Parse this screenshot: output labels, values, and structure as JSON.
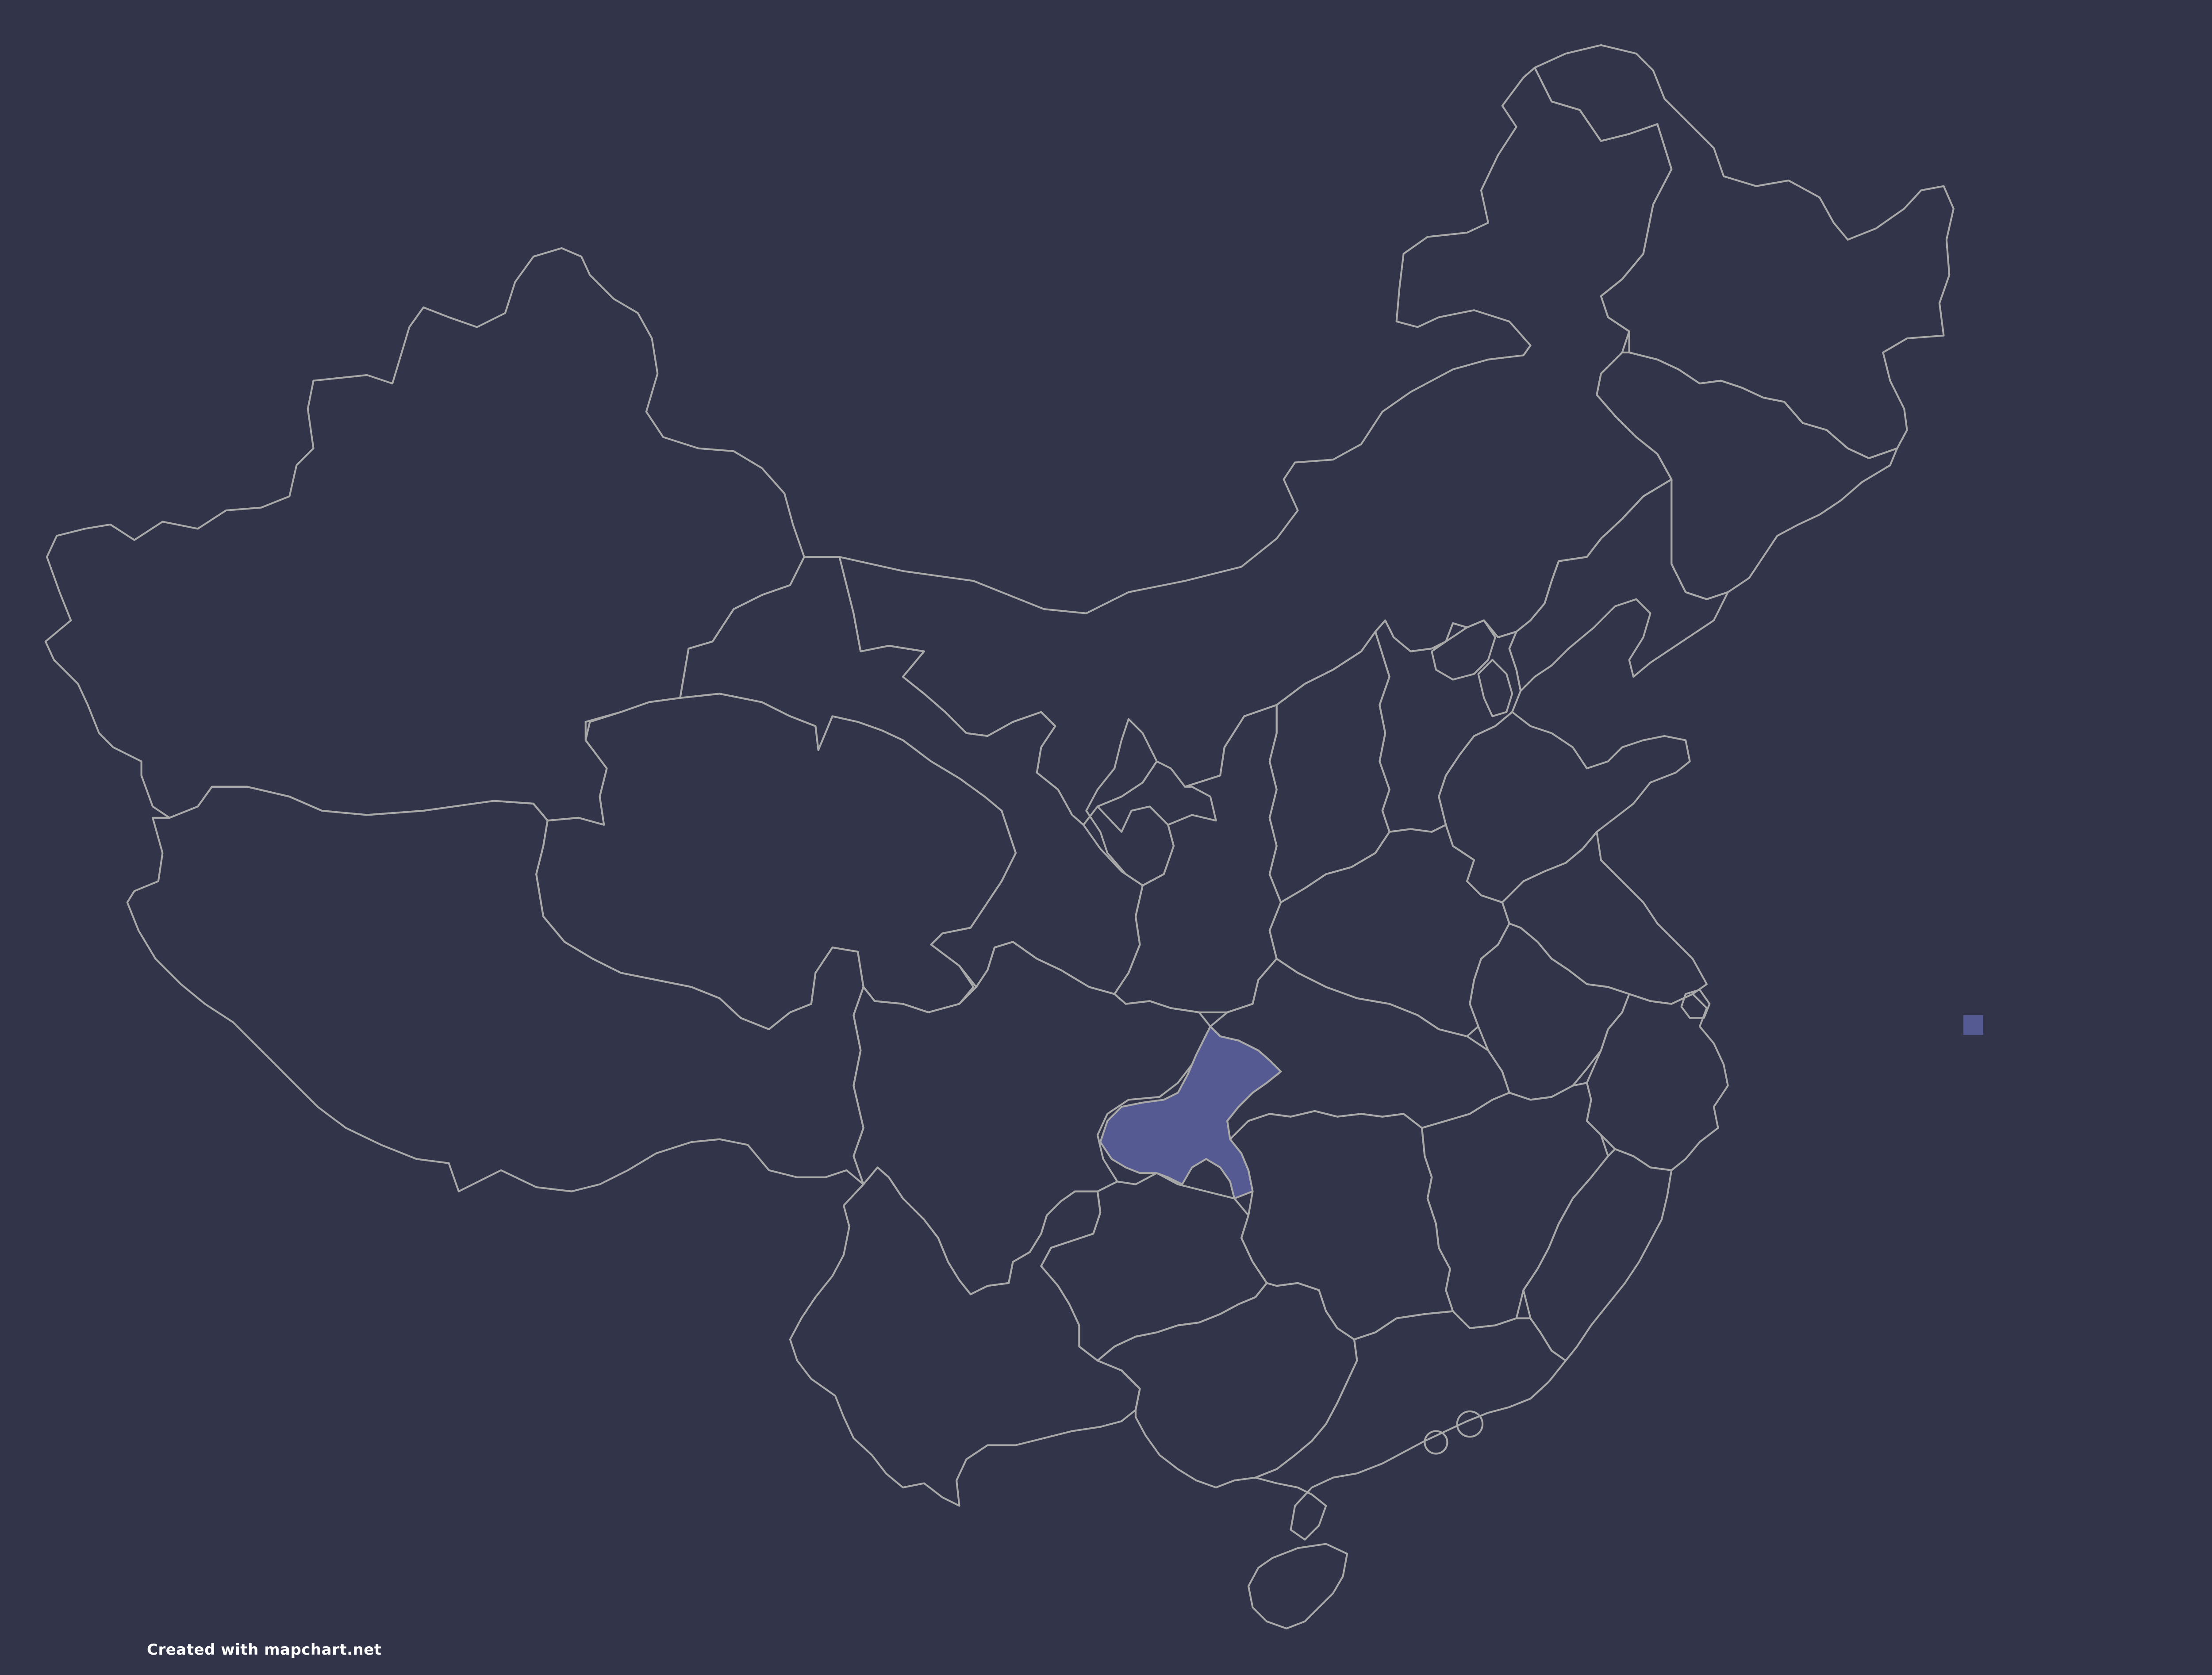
{
  "map": {
    "background_color": "#32344a",
    "border_color": "#a8a8a8",
    "highlight_color": "#555b92",
    "highlighted_region": "Chongqing"
  },
  "credit": {
    "text": "Created with mapchart.net"
  }
}
